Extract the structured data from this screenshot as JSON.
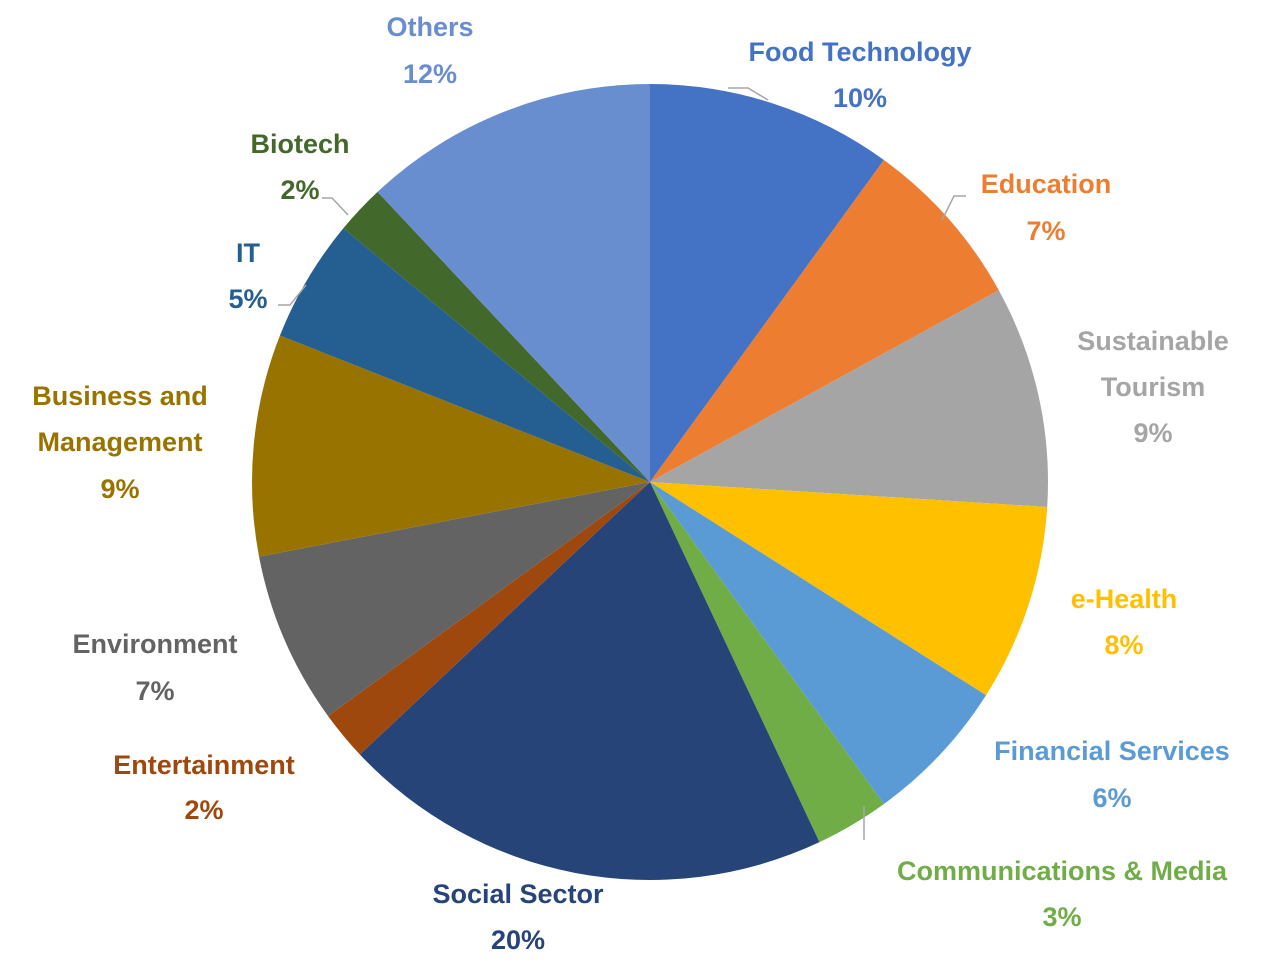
{
  "chart_data": {
    "type": "pie",
    "title": "",
    "slices": [
      {
        "name": "Food Technology",
        "value": 10,
        "label": "10%",
        "color": "#4472C4"
      },
      {
        "name": "Education",
        "value": 7,
        "label": "7%",
        "color": "#ED7D31"
      },
      {
        "name": "Sustainable Tourism",
        "value": 9,
        "label": "9%",
        "color": "#A5A5A5"
      },
      {
        "name": "e-Health",
        "value": 8,
        "label": "8%",
        "color": "#FFC000"
      },
      {
        "name": "Financial Services",
        "value": 6,
        "label": "6%",
        "color": "#5B9BD5"
      },
      {
        "name": "Communications & Media",
        "value": 3,
        "label": "3%",
        "color": "#70AD47"
      },
      {
        "name": "Social Sector",
        "value": 20,
        "label": "20%",
        "color": "#264478"
      },
      {
        "name": "Entertainment",
        "value": 2,
        "label": "2%",
        "color": "#9E480E"
      },
      {
        "name": "Environment",
        "value": 7,
        "label": "7%",
        "color": "#636363"
      },
      {
        "name": "Business and Management",
        "value": 9,
        "label": "9%",
        "color": "#997300"
      },
      {
        "name": "IT",
        "value": 5,
        "label": "5%",
        "color": "#255E91"
      },
      {
        "name": "Biotech",
        "value": 2,
        "label": "2%",
        "color": "#43682B"
      },
      {
        "name": "Others",
        "value": 12,
        "label": "12%",
        "color": "#698ED0"
      }
    ]
  }
}
